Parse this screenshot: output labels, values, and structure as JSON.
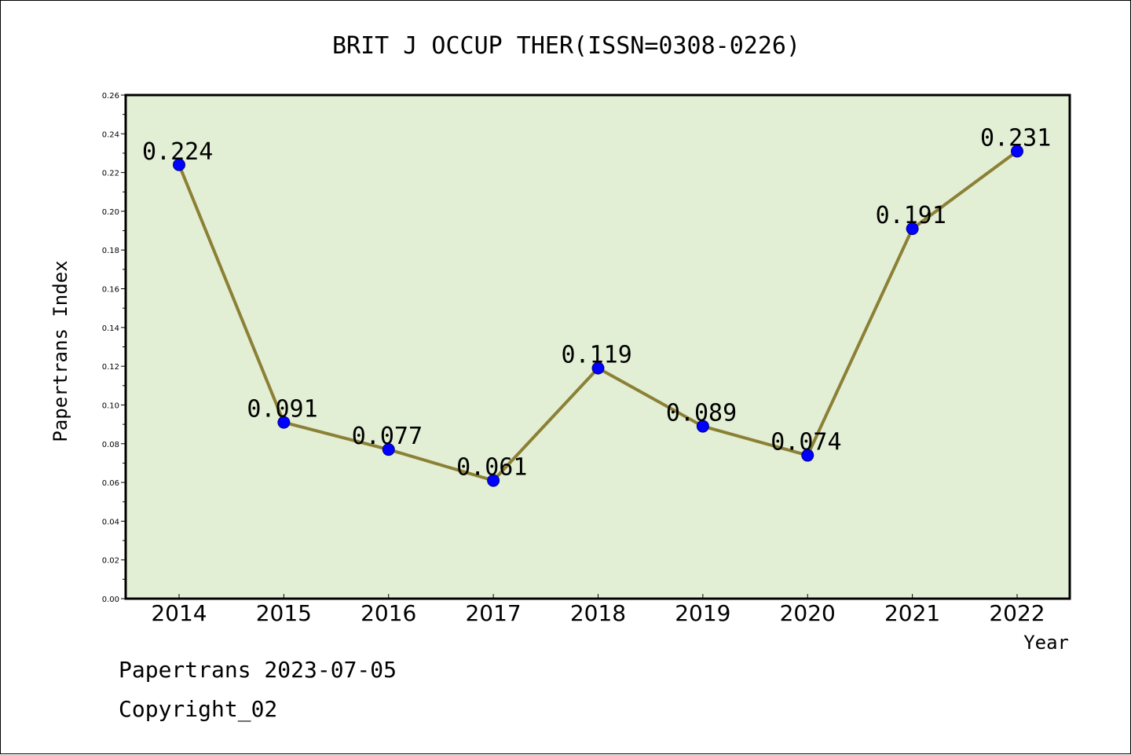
{
  "chart_data": {
    "type": "line",
    "title": "BRIT J OCCUP THER(ISSN=0308-0226)",
    "xlabel": "Year",
    "ylabel": "Papertrans Index",
    "categories": [
      "2014",
      "2015",
      "2016",
      "2017",
      "2018",
      "2019",
      "2020",
      "2021",
      "2022"
    ],
    "values": [
      0.224,
      0.091,
      0.077,
      0.061,
      0.119,
      0.089,
      0.074,
      0.191,
      0.231
    ],
    "data_labels": [
      "0.224",
      "0.091",
      "0.077",
      "0.061",
      "0.119",
      "0.089",
      "0.074",
      "0.191",
      "0.231"
    ],
    "ylim": [
      0,
      0.26
    ],
    "yticks": [
      "0.00",
      "0.02",
      "0.04",
      "0.06",
      "0.08",
      "0.10",
      "0.12",
      "0.14",
      "0.16",
      "0.18",
      "0.20",
      "0.22",
      "0.24",
      "0.26"
    ],
    "grid": false,
    "colors": {
      "plot_background": "#e2efd5",
      "line": "#8b8035",
      "marker": "#0000ff",
      "marker_edge": "#000080"
    }
  },
  "footer": {
    "line1": "Papertrans 2023-07-05",
    "line2": "Copyright_02"
  }
}
